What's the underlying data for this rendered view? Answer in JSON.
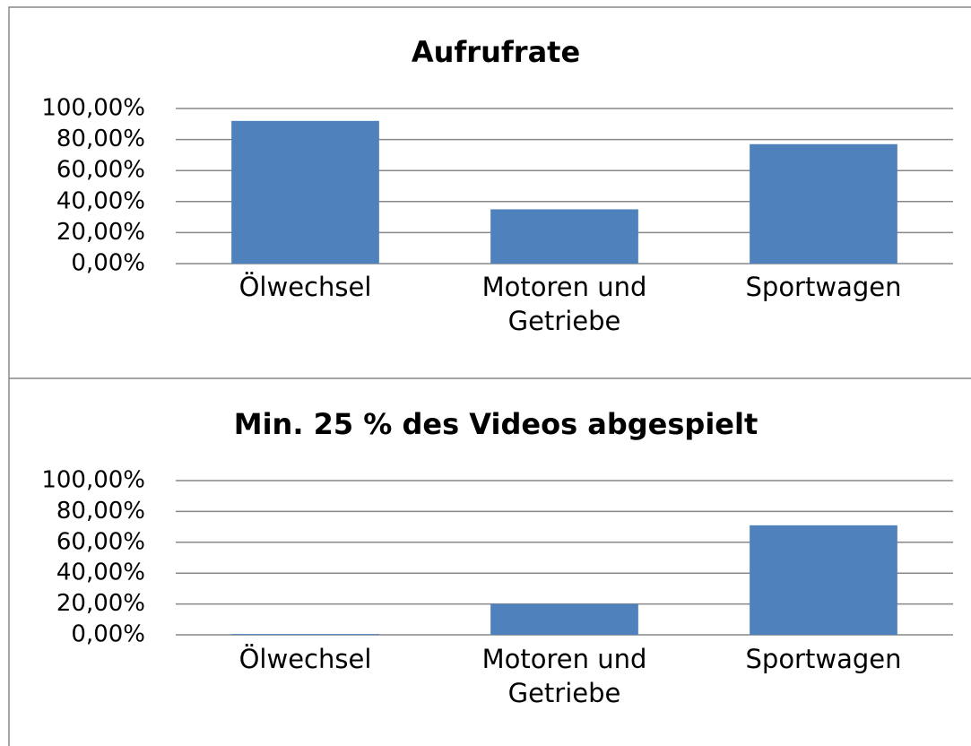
{
  "chart_data": [
    {
      "type": "bar",
      "title": "Aufrufrate",
      "categories": [
        "Ölwechsel",
        "Motoren und Getriebe",
        "Sportwagen"
      ],
      "values": [
        92,
        35,
        77
      ],
      "color": "#4f81bd",
      "ylim": [
        0,
        100
      ],
      "yticks": [
        {
          "value": 0,
          "label": "0,00%"
        },
        {
          "value": 20,
          "label": "20,00%"
        },
        {
          "value": 40,
          "label": "40,00%"
        },
        {
          "value": 60,
          "label": "60,00%"
        },
        {
          "value": 80,
          "label": "80,00%"
        },
        {
          "value": 100,
          "label": "100,00%"
        }
      ],
      "grid": true
    },
    {
      "type": "bar",
      "title": "Min. 25 % des Videos abgespielt",
      "categories": [
        "Ölwechsel",
        "Motoren und Getriebe",
        "Sportwagen"
      ],
      "values": [
        0.5,
        20,
        71
      ],
      "color": "#4f81bd",
      "ylim": [
        0,
        100
      ],
      "yticks": [
        {
          "value": 0,
          "label": "0,00%"
        },
        {
          "value": 20,
          "label": "20,00%"
        },
        {
          "value": 40,
          "label": "40,00%"
        },
        {
          "value": 60,
          "label": "60,00%"
        },
        {
          "value": 80,
          "label": "80,00%"
        },
        {
          "value": 100,
          "label": "100,00%"
        }
      ],
      "grid": true
    }
  ]
}
